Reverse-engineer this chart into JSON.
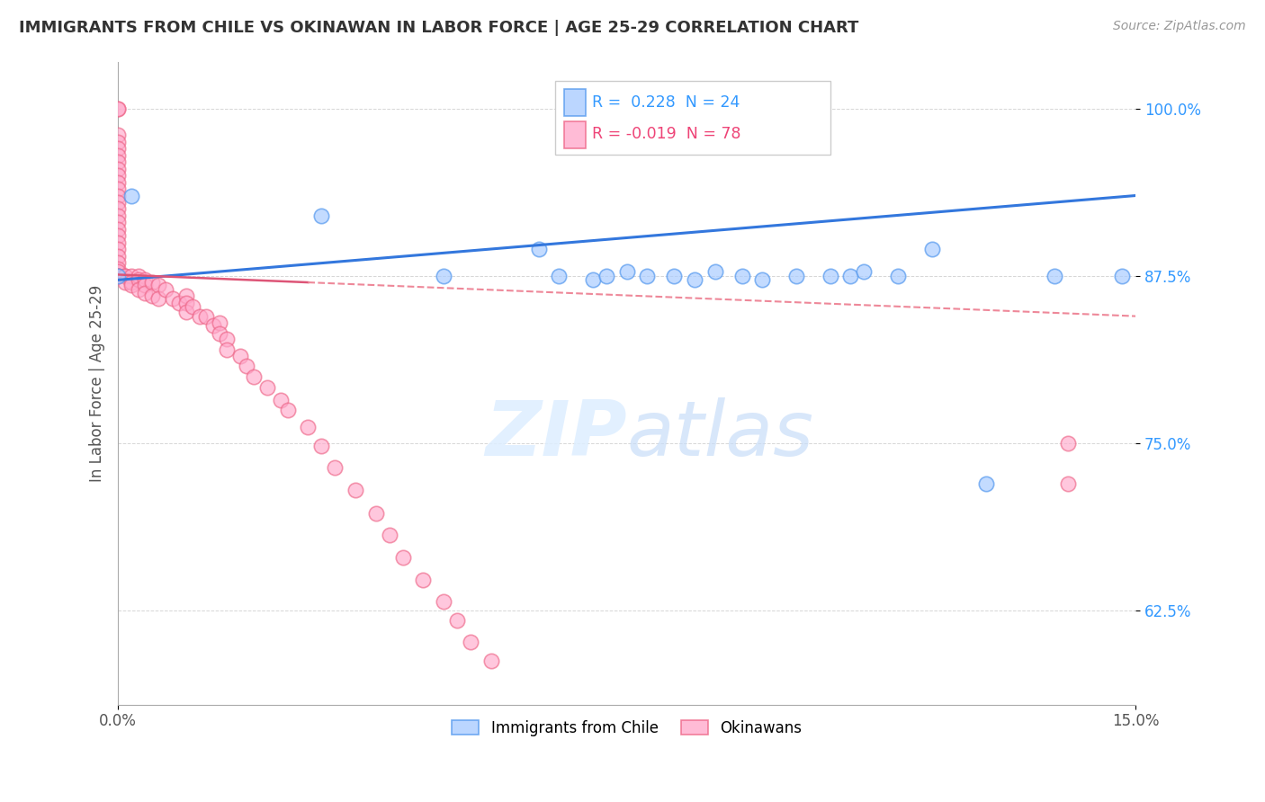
{
  "title": "IMMIGRANTS FROM CHILE VS OKINAWAN IN LABOR FORCE | AGE 25-29 CORRELATION CHART",
  "source": "Source: ZipAtlas.com",
  "ylabel": "In Labor Force | Age 25-29",
  "xlim": [
    0.0,
    0.15
  ],
  "ylim": [
    0.555,
    1.035
  ],
  "y_ticks": [
    0.625,
    0.75,
    0.875,
    1.0
  ],
  "y_tick_labels": [
    "62.5%",
    "75.0%",
    "87.5%",
    "100.0%"
  ],
  "legend1_label": "Immigrants from Chile",
  "legend2_label": "Okinawans",
  "r_chile": 0.228,
  "n_chile": 24,
  "r_okinawan": -0.019,
  "n_okinawan": 78,
  "blue_color": "#aaccff",
  "blue_edge": "#5599ee",
  "pink_color": "#ffaacc",
  "pink_edge": "#ee6688",
  "trend_blue_color": "#3377dd",
  "trend_pink_solid_color": "#dd5577",
  "trend_pink_dash_color": "#ee8899",
  "watermark_color": "#ddeeff",
  "blue_scatter_x": [
    0.0,
    0.002,
    0.03,
    0.048,
    0.062,
    0.065,
    0.07,
    0.072,
    0.075,
    0.078,
    0.082,
    0.085,
    0.088,
    0.092,
    0.095,
    0.1,
    0.105,
    0.108,
    0.11,
    0.115,
    0.12,
    0.128,
    0.138,
    0.148
  ],
  "blue_scatter_y": [
    0.875,
    0.935,
    0.92,
    0.875,
    0.895,
    0.875,
    0.872,
    0.875,
    0.878,
    0.875,
    0.875,
    0.872,
    0.878,
    0.875,
    0.872,
    0.875,
    0.875,
    0.875,
    0.878,
    0.875,
    0.895,
    0.72,
    0.875,
    0.875
  ],
  "pink_scatter_x": [
    0.0,
    0.0,
    0.0,
    0.0,
    0.0,
    0.0,
    0.0,
    0.0,
    0.0,
    0.0,
    0.0,
    0.0,
    0.0,
    0.0,
    0.0,
    0.0,
    0.0,
    0.0,
    0.0,
    0.0,
    0.0,
    0.0,
    0.0,
    0.0,
    0.0,
    0.0,
    0.0,
    0.0,
    0.001,
    0.001,
    0.001,
    0.002,
    0.002,
    0.002,
    0.003,
    0.003,
    0.003,
    0.004,
    0.004,
    0.004,
    0.005,
    0.005,
    0.006,
    0.006,
    0.007,
    0.008,
    0.009,
    0.01,
    0.01,
    0.01,
    0.011,
    0.012,
    0.013,
    0.014,
    0.015,
    0.015,
    0.016,
    0.016,
    0.018,
    0.019,
    0.02,
    0.022,
    0.024,
    0.025,
    0.028,
    0.03,
    0.032,
    0.035,
    0.038,
    0.04,
    0.042,
    0.045,
    0.048,
    0.05,
    0.052,
    0.055,
    0.14,
    0.14
  ],
  "pink_scatter_y": [
    1.0,
    1.0,
    0.98,
    0.975,
    0.97,
    0.965,
    0.96,
    0.955,
    0.95,
    0.945,
    0.94,
    0.935,
    0.93,
    0.925,
    0.92,
    0.915,
    0.91,
    0.905,
    0.9,
    0.895,
    0.89,
    0.885,
    0.88,
    0.878,
    0.875,
    0.875,
    0.875,
    0.875,
    0.875,
    0.875,
    0.87,
    0.875,
    0.87,
    0.868,
    0.875,
    0.872,
    0.865,
    0.872,
    0.868,
    0.862,
    0.87,
    0.86,
    0.868,
    0.858,
    0.865,
    0.858,
    0.855,
    0.86,
    0.855,
    0.848,
    0.852,
    0.845,
    0.845,
    0.838,
    0.84,
    0.832,
    0.828,
    0.82,
    0.815,
    0.808,
    0.8,
    0.792,
    0.782,
    0.775,
    0.762,
    0.748,
    0.732,
    0.715,
    0.698,
    0.682,
    0.665,
    0.648,
    0.632,
    0.618,
    0.602,
    0.588,
    0.75,
    0.72
  ]
}
